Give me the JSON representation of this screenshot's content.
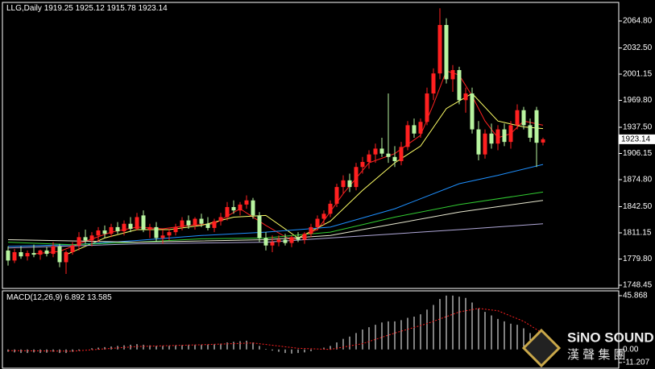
{
  "chart_data": [
    {
      "type": "candlestick",
      "title": "LLG,Daily",
      "open": [
        1790,
        1778,
        1788,
        1783,
        1787,
        1785,
        1790,
        1786,
        1795,
        1776,
        1788,
        1796,
        1806,
        1802,
        1808,
        1814,
        1810,
        1818,
        1813,
        1822,
        1816,
        1832,
        1815,
        1818,
        1805,
        1808,
        1812,
        1818,
        1826,
        1820,
        1828,
        1822,
        1817,
        1825,
        1830,
        1842,
        1838,
        1845,
        1850,
        1832,
        1805,
        1796,
        1800,
        1803,
        1799,
        1806,
        1803,
        1810,
        1818,
        1828,
        1834,
        1846,
        1866,
        1874,
        1866,
        1890,
        1896,
        1905,
        1912,
        1906,
        1902,
        1897,
        1914,
        1940,
        1930,
        1944,
        1978,
        2002,
        2060,
        1995,
        2006,
        1970,
        1978,
        1935,
        1905,
        1930,
        1918,
        1935,
        1920,
        1940,
        1958,
        1940,
        1958,
        1919.25
      ],
      "high": [
        1795,
        1792,
        1795,
        1790,
        1797,
        1791,
        1794,
        1800,
        1798,
        1790,
        1800,
        1812,
        1815,
        1812,
        1818,
        1820,
        1822,
        1824,
        1826,
        1830,
        1835,
        1838,
        1822,
        1824,
        1815,
        1816,
        1822,
        1830,
        1832,
        1830,
        1834,
        1830,
        1828,
        1835,
        1848,
        1850,
        1848,
        1856,
        1853,
        1836,
        1812,
        1808,
        1808,
        1810,
        1808,
        1812,
        1812,
        1822,
        1832,
        1838,
        1850,
        1870,
        1880,
        1882,
        1895,
        1902,
        1910,
        1918,
        1925,
        1978,
        1915,
        1920,
        1945,
        1948,
        1948,
        1985,
        2008,
        2080,
        2068,
        2012,
        2010,
        1985,
        1985,
        1945,
        1935,
        1942,
        1940,
        1942,
        1945,
        1965,
        1962,
        1948,
        1962,
        1925.12
      ],
      "low": [
        1772,
        1775,
        1780,
        1778,
        1782,
        1779,
        1783,
        1782,
        1770,
        1762,
        1785,
        1790,
        1798,
        1795,
        1800,
        1805,
        1806,
        1810,
        1808,
        1812,
        1814,
        1812,
        1805,
        1800,
        1798,
        1802,
        1808,
        1814,
        1816,
        1815,
        1818,
        1814,
        1812,
        1820,
        1826,
        1834,
        1832,
        1840,
        1828,
        1800,
        1790,
        1788,
        1795,
        1796,
        1794,
        1800,
        1798,
        1806,
        1814,
        1820,
        1830,
        1842,
        1858,
        1860,
        1862,
        1882,
        1888,
        1895,
        1902,
        1895,
        1890,
        1892,
        1910,
        1925,
        1925,
        1940,
        1970,
        1995,
        1990,
        1980,
        1965,
        1955,
        1930,
        1898,
        1900,
        1912,
        1910,
        1915,
        1912,
        1935,
        1935,
        1920,
        1890,
        1915.78
      ],
      "close": [
        1778,
        1788,
        1783,
        1787,
        1785,
        1790,
        1786,
        1795,
        1776,
        1788,
        1796,
        1806,
        1802,
        1808,
        1814,
        1810,
        1818,
        1813,
        1822,
        1816,
        1830,
        1815,
        1818,
        1805,
        1808,
        1812,
        1818,
        1826,
        1820,
        1828,
        1822,
        1817,
        1825,
        1830,
        1842,
        1838,
        1845,
        1850,
        1832,
        1805,
        1796,
        1800,
        1803,
        1799,
        1806,
        1803,
        1810,
        1818,
        1828,
        1834,
        1846,
        1866,
        1874,
        1866,
        1890,
        1896,
        1905,
        1912,
        1906,
        1902,
        1897,
        1914,
        1940,
        1930,
        1944,
        1978,
        2002,
        2060,
        1995,
        2006,
        1970,
        1978,
        1935,
        1905,
        1930,
        1918,
        1935,
        1920,
        1940,
        1958,
        1940,
        1925,
        1919,
        1923.14
      ],
      "up_color": "#ff2020",
      "down_color": "#b8f5a0",
      "lines": [
        {
          "color": "#ff2020",
          "x": [
            4,
            8,
            12,
            16,
            20,
            24,
            28,
            32,
            36,
            40,
            44,
            48,
            52,
            56,
            60,
            64,
            66,
            68,
            70,
            72,
            74,
            76,
            78,
            80,
            83
          ],
          "values": [
            1786,
            1789,
            1801,
            1812,
            1818,
            1816,
            1820,
            1822,
            1840,
            1820,
            1802,
            1815,
            1858,
            1895,
            1906,
            1928,
            1965,
            2005,
            2000,
            1975,
            1945,
            1925,
            1930,
            1945,
            1940
          ]
        },
        {
          "color": "#ffff66",
          "x": [
            9,
            15,
            20,
            25,
            30,
            35,
            40,
            45,
            50,
            55,
            60,
            64,
            68,
            72,
            76,
            80,
            83
          ],
          "values": [
            1785,
            1805,
            1815,
            1815,
            1820,
            1830,
            1832,
            1805,
            1825,
            1862,
            1895,
            1915,
            1960,
            1978,
            1945,
            1938,
            1936
          ]
        },
        {
          "color": "#1e90ff",
          "x": [
            0,
            10,
            20,
            30,
            40,
            50,
            60,
            70,
            76,
            83
          ],
          "values": [
            1795,
            1797,
            1802,
            1808,
            1812,
            1818,
            1840,
            1870,
            1880,
            1893
          ]
        },
        {
          "color": "#32cd32",
          "x": [
            0,
            10,
            20,
            30,
            40,
            50,
            60,
            70,
            83
          ],
          "values": [
            1800,
            1797,
            1800,
            1804,
            1805,
            1812,
            1830,
            1845,
            1860
          ]
        },
        {
          "color": "#e8e8d0",
          "x": [
            0,
            20,
            40,
            50,
            60,
            70,
            83
          ],
          "values": [
            1803,
            1800,
            1803,
            1808,
            1822,
            1836,
            1850
          ]
        },
        {
          "color": "#b0a8d8",
          "x": [
            0,
            20,
            40,
            50,
            60,
            70,
            83
          ],
          "values": [
            1793,
            1798,
            1800,
            1805,
            1810,
            1815,
            1822
          ]
        }
      ],
      "ylim": [
        1744.6,
        2089.9
      ],
      "yticks": [
        {
          "value": 2064.8,
          "label": "2064.80"
        },
        {
          "value": 2032.5,
          "label": "2032.50"
        },
        {
          "value": 2001.15,
          "label": "2001.15"
        },
        {
          "value": 1969.8,
          "label": "1969.80"
        },
        {
          "value": 1937.5,
          "label": "1937.50"
        },
        {
          "value": 1906.15,
          "label": "1906.15"
        },
        {
          "value": 1874.8,
          "label": "1874.80"
        },
        {
          "value": 1842.5,
          "label": "1842.50"
        },
        {
          "value": 1811.15,
          "label": "1811.15"
        },
        {
          "value": 1779.8,
          "label": "1779.80"
        },
        {
          "value": 1748.45,
          "label": "1748.45"
        }
      ]
    },
    {
      "type": "macd",
      "title": "MACD(12,26,9)",
      "histogram": {
        "color": "#ffffff",
        "values": [
          -2,
          -2.5,
          -3,
          -3,
          -2.5,
          -3,
          -2.8,
          -2,
          -3,
          -3,
          -2,
          -1,
          0,
          1,
          1.5,
          2,
          2.5,
          3,
          3.5,
          4,
          4.5,
          4,
          3.5,
          3.2,
          3,
          3.2,
          3.5,
          3.8,
          4,
          4,
          4,
          4.2,
          4.5,
          5,
          6,
          6.5,
          7,
          7.5,
          6,
          3,
          0.5,
          -1,
          -2,
          -3,
          -3.5,
          -3,
          -2.5,
          -1.5,
          0,
          1.5,
          3,
          6,
          9,
          11,
          14,
          17,
          19,
          21,
          23,
          24,
          24,
          25,
          27,
          28,
          30,
          34,
          38,
          43,
          46,
          46,
          45,
          44,
          40,
          35,
          32,
          29,
          26,
          24,
          22,
          21,
          18,
          14,
          10,
          6.892
        ]
      },
      "signal": {
        "color": "#ff2020",
        "x": [
          0,
          10,
          20,
          30,
          38,
          45,
          50,
          55,
          60,
          65,
          70,
          73,
          76,
          80,
          83
        ],
        "values": [
          -1,
          -1.5,
          2.5,
          4,
          5.5,
          1,
          0,
          5,
          14,
          22,
          32,
          35,
          33,
          24,
          13.585
        ]
      },
      "ylim": [
        -16,
        50
      ],
      "yticks": [
        45.868,
        {
          "value": 0,
          "label": "0.00"
        },
        -11.207
      ]
    }
  ],
  "watermark": {
    "brand": "SiNO SOUND",
    "chinese": "漢 聲 集 團"
  }
}
